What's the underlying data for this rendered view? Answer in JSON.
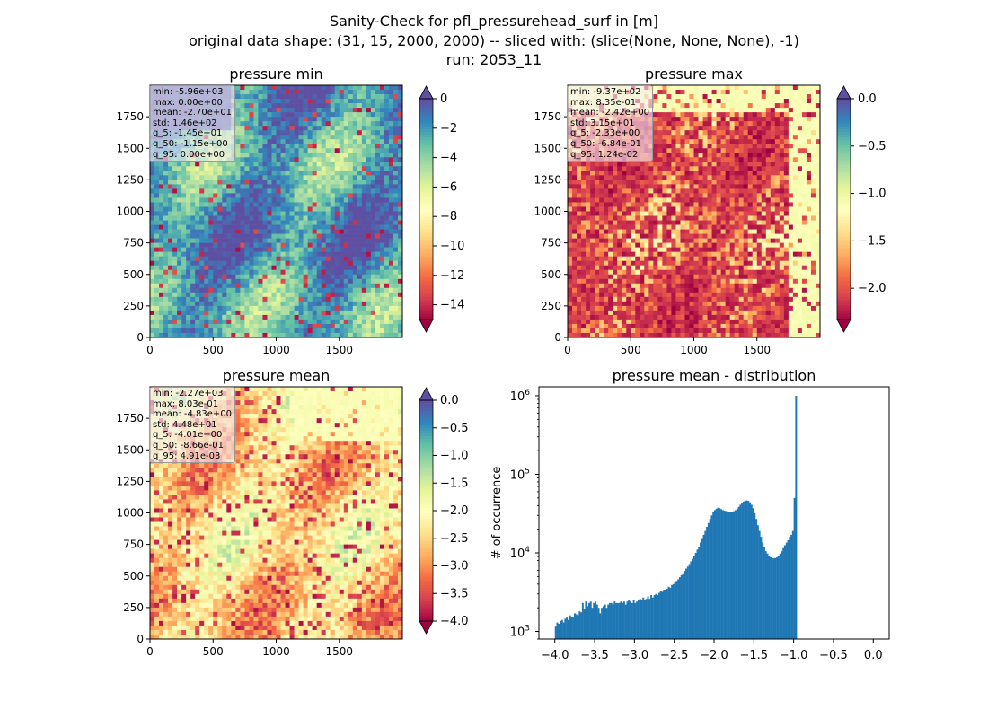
{
  "figure": {
    "suptitle_lines": [
      "Sanity-Check for pfl_pressurehead_surf in [m]",
      "original data shape: (31, 15, 2000, 2000) -- sliced with: (slice(None, None, None), -1)",
      "run: 2053_11"
    ]
  },
  "chart_data": [
    {
      "type": "heatmap",
      "title": "pressure min",
      "colormap": "Spectral",
      "xticks": [
        0,
        500,
        1000,
        1500
      ],
      "yticks": [
        0,
        250,
        500,
        750,
        1000,
        1250,
        1500,
        1750
      ],
      "xlim": [
        0,
        2000
      ],
      "ylim": [
        0,
        2000
      ],
      "colorbar": {
        "ticks": [
          0,
          -2,
          -4,
          -6,
          -8,
          -10,
          -12,
          -14
        ],
        "tick_labels": [
          "0",
          "−2",
          "−4",
          "−6",
          "−8",
          "−10",
          "−12",
          "−14"
        ],
        "range": [
          -15,
          0
        ],
        "extend": "both"
      },
      "stats": [
        "min: -5.96e+03",
        "max: 0.00e+00",
        "mean: -2.70e+01",
        "std: 1.46e+02",
        "q_5: -1.45e+01",
        "q_50: -1.15e+00",
        "q_95: 0.00e+00"
      ]
    },
    {
      "type": "heatmap",
      "title": "pressure max",
      "colormap": "Spectral",
      "xticks": [
        0,
        500,
        1000,
        1500
      ],
      "yticks": [
        0,
        250,
        500,
        750,
        1000,
        1250,
        1500,
        1750
      ],
      "xlim": [
        0,
        2000
      ],
      "ylim": [
        0,
        2000
      ],
      "colorbar": {
        "ticks": [
          0.0,
          -0.5,
          -1.0,
          -1.5,
          -2.0
        ],
        "tick_labels": [
          "0.0",
          "−0.5",
          "−1.0",
          "−1.5",
          "−2.0"
        ],
        "range": [
          -2.33,
          0.0
        ],
        "extend": "both"
      },
      "stats": [
        "min: -9.37e+02",
        "max: 8.35e-01",
        "mean: -2.42e+00",
        "std: 3.15e+01",
        "q_5: -2.33e+00",
        "q_50: -6.84e-01",
        "q_95: 1.24e-02"
      ]
    },
    {
      "type": "heatmap",
      "title": "pressure mean",
      "colormap": "Spectral",
      "xticks": [
        0,
        500,
        1000,
        1500
      ],
      "yticks": [
        0,
        250,
        500,
        750,
        1000,
        1250,
        1500,
        1750
      ],
      "xlim": [
        0,
        2000
      ],
      "ylim": [
        0,
        2000
      ],
      "colorbar": {
        "ticks": [
          0.0,
          -0.5,
          -1.0,
          -1.5,
          -2.0,
          -2.5,
          -3.0,
          -3.5,
          -4.0
        ],
        "tick_labels": [
          "0.0",
          "−0.5",
          "−1.0",
          "−1.5",
          "−2.0",
          "−2.5",
          "−3.0",
          "−3.5",
          "−4.0"
        ],
        "range": [
          -4.0,
          0.0
        ],
        "extend": "both"
      },
      "stats": [
        "min: -2.27e+03",
        "max: 8.03e-01",
        "mean: -4.83e+00",
        "std: 4.48e+01",
        "q_5: -4.01e+00",
        "q_50: -8.66e-01",
        "q_95: 4.91e-03"
      ]
    },
    {
      "type": "bar",
      "title": "pressure mean - distribution",
      "ylabel": "# of occurrence",
      "yscale": "log",
      "color": "#1f77b4",
      "xlim": [
        -4.2,
        0.2
      ],
      "xticks": [
        -4.0,
        -3.5,
        -3.0,
        -2.5,
        -2.0,
        -1.5,
        -1.0,
        -0.5,
        0.0
      ],
      "xtick_labels": [
        "−4.0",
        "−3.5",
        "−3.0",
        "−2.5",
        "−2.0",
        "−1.5",
        "−1.0",
        "−0.5",
        "0.0"
      ],
      "ylim": [
        800,
        1300000
      ],
      "yticks": [
        1000,
        10000,
        100000,
        1000000
      ],
      "ytick_labels": [
        "10^3",
        "10^4",
        "10^5",
        "10^6"
      ],
      "series": [
        {
          "bin_start": -4.0,
          "bin_width": 0.02,
          "values": [
            1150,
            1300,
            1250,
            1350,
            1400,
            1300,
            1450,
            1500,
            1400,
            1600,
            1550,
            1500,
            1700,
            1650,
            1600,
            1800,
            1750,
            2300,
            1900,
            2400,
            2100,
            2300,
            2400,
            2000,
            2300,
            2400,
            2200,
            2000,
            1700,
            2000,
            2100,
            2200,
            2000,
            2200,
            2300,
            2300,
            2200,
            2400,
            2300,
            2300,
            2300,
            2400,
            2300,
            2400,
            2200,
            2400,
            2500,
            2400,
            2300,
            2500,
            2300,
            2400,
            2500,
            2600,
            2500,
            2700,
            2500,
            2600,
            2800,
            2600,
            2900,
            2700,
            2900,
            3000,
            2900,
            3100,
            3300,
            3200,
            3400,
            3400,
            3500,
            3700,
            3600,
            3900,
            4000,
            4200,
            4400,
            4600,
            4900,
            5200,
            5500,
            5900,
            6300,
            6700,
            7200,
            7800,
            8400,
            9100,
            10000,
            11000,
            12000,
            13500,
            15000,
            17000,
            19000,
            21500,
            24000,
            27000,
            30000,
            33000,
            35000,
            36500,
            37500,
            37000,
            36000,
            35000,
            34500,
            34000,
            33500,
            33000,
            33000,
            33500,
            34000,
            35000,
            36500,
            38500,
            41000,
            43000,
            45000,
            46000,
            46500,
            46000,
            44000,
            41000,
            37000,
            32000,
            27000,
            22500,
            19000,
            16000,
            13500,
            11800,
            10500,
            9800,
            9200,
            8800,
            8600,
            8500,
            8600,
            8800,
            9200,
            9800,
            10500,
            11500,
            12500,
            13500,
            14500,
            16000,
            17000,
            19000,
            50000,
            1000000
          ]
        }
      ]
    }
  ]
}
